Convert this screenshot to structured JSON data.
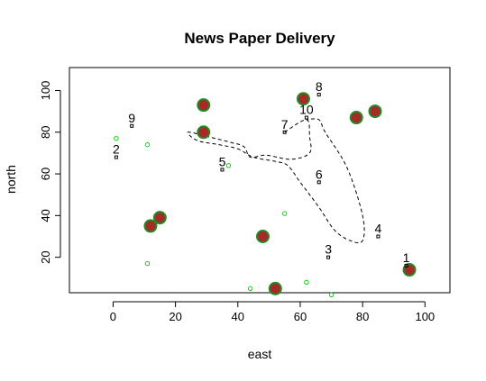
{
  "chart_data": {
    "type": "scatter",
    "title": "News Paper Delivery",
    "xlabel": "east",
    "ylabel": "north",
    "xlim": [
      -14,
      108
    ],
    "ylim": [
      3,
      111
    ],
    "xticks": [
      0,
      20,
      40,
      60,
      80,
      100
    ],
    "yticks": [
      20,
      40,
      60,
      80,
      100
    ],
    "grid": false,
    "legend": "none",
    "colors": {
      "house_fill": "#a52a2a",
      "house_edge": "#228b22",
      "green_point": "#00dd00",
      "stop_point": "#000000",
      "route": "#000000"
    },
    "houses": [
      {
        "x": 29,
        "y": 93
      },
      {
        "x": 29,
        "y": 80
      },
      {
        "x": 61,
        "y": 96
      },
      {
        "x": 78,
        "y": 87
      },
      {
        "x": 84,
        "y": 90
      },
      {
        "x": 12,
        "y": 35
      },
      {
        "x": 15,
        "y": 39
      },
      {
        "x": 48,
        "y": 30
      },
      {
        "x": 52,
        "y": 5
      },
      {
        "x": 95,
        "y": 14
      }
    ],
    "green_points": [
      {
        "x": 1,
        "y": 77
      },
      {
        "x": 11,
        "y": 74
      },
      {
        "x": 37,
        "y": 64
      },
      {
        "x": 55,
        "y": 41
      },
      {
        "x": 11,
        "y": 17
      },
      {
        "x": 44,
        "y": 5
      },
      {
        "x": 62,
        "y": 8
      },
      {
        "x": 70,
        "y": 2
      }
    ],
    "stops": [
      {
        "label": "1",
        "x": 94,
        "y": 16
      },
      {
        "label": "2",
        "x": 1,
        "y": 68
      },
      {
        "label": "3",
        "x": 69,
        "y": 20
      },
      {
        "label": "4",
        "x": 85,
        "y": 30
      },
      {
        "label": "5",
        "x": 35,
        "y": 62
      },
      {
        "label": "6",
        "x": 66,
        "y": 56
      },
      {
        "label": "7",
        "x": 55,
        "y": 80
      },
      {
        "label": "8",
        "x": 66,
        "y": 98
      },
      {
        "label": "9",
        "x": 6,
        "y": 83
      },
      {
        "label": "10",
        "x": 62,
        "y": 87
      }
    ],
    "route": [
      {
        "x": 55,
        "y": 80
      },
      {
        "x": 62,
        "y": 86
      },
      {
        "x": 63,
        "y": 78
      },
      {
        "x": 63,
        "y": 70
      },
      {
        "x": 57,
        "y": 67
      },
      {
        "x": 49,
        "y": 69
      },
      {
        "x": 44,
        "y": 68
      },
      {
        "x": 42,
        "y": 73
      },
      {
        "x": 38,
        "y": 75
      },
      {
        "x": 30,
        "y": 78
      },
      {
        "x": 24,
        "y": 80
      },
      {
        "x": 27,
        "y": 76
      },
      {
        "x": 34,
        "y": 74
      },
      {
        "x": 40,
        "y": 72
      },
      {
        "x": 45,
        "y": 68
      },
      {
        "x": 52,
        "y": 66
      },
      {
        "x": 56,
        "y": 64
      },
      {
        "x": 60,
        "y": 56
      },
      {
        "x": 66,
        "y": 44
      },
      {
        "x": 71,
        "y": 33
      },
      {
        "x": 76,
        "y": 28
      },
      {
        "x": 80,
        "y": 28
      },
      {
        "x": 80,
        "y": 40
      },
      {
        "x": 75,
        "y": 63
      },
      {
        "x": 68,
        "y": 80
      },
      {
        "x": 66,
        "y": 86
      },
      {
        "x": 62,
        "y": 86
      }
    ]
  }
}
